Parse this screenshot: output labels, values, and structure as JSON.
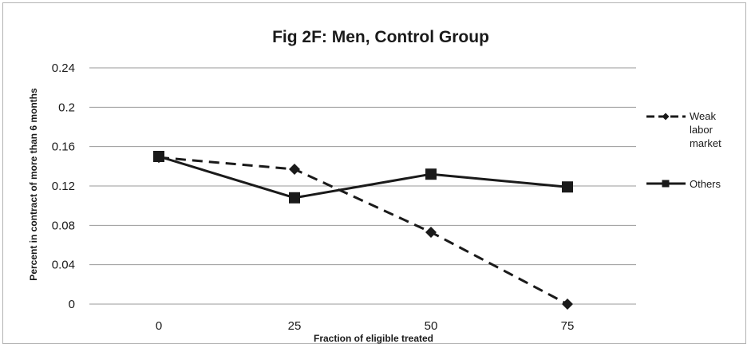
{
  "chart_data": {
    "type": "line",
    "title": "Fig 2F: Men, Control Group",
    "xlabel": "Fraction of eligible treated",
    "ylabel": "Percent in contract of more than 6 months",
    "x": [
      0,
      25,
      50,
      75
    ],
    "x_tick_labels": [
      "0",
      "25",
      "50",
      "75"
    ],
    "ylim": [
      0,
      0.24
    ],
    "y_ticks": [
      0,
      0.04,
      0.08,
      0.12,
      0.16,
      0.2,
      0.24
    ],
    "y_tick_labels": [
      "0",
      "0.04",
      "0.08",
      "0.12",
      "0.16",
      "0.2",
      "0.24"
    ],
    "grid": true,
    "legend_position": "right",
    "series": [
      {
        "name": "Weak labor market",
        "legend_lines": [
          "Weak",
          "labor",
          "market"
        ],
        "values": [
          0.149,
          0.137,
          0.073,
          0.0
        ],
        "style": "dashed",
        "marker": "diamond",
        "color": "#1a1a1a"
      },
      {
        "name": "Others",
        "legend_lines": [
          "Others"
        ],
        "values": [
          0.15,
          0.108,
          0.132,
          0.119
        ],
        "style": "solid",
        "marker": "square",
        "color": "#1a1a1a"
      }
    ]
  }
}
